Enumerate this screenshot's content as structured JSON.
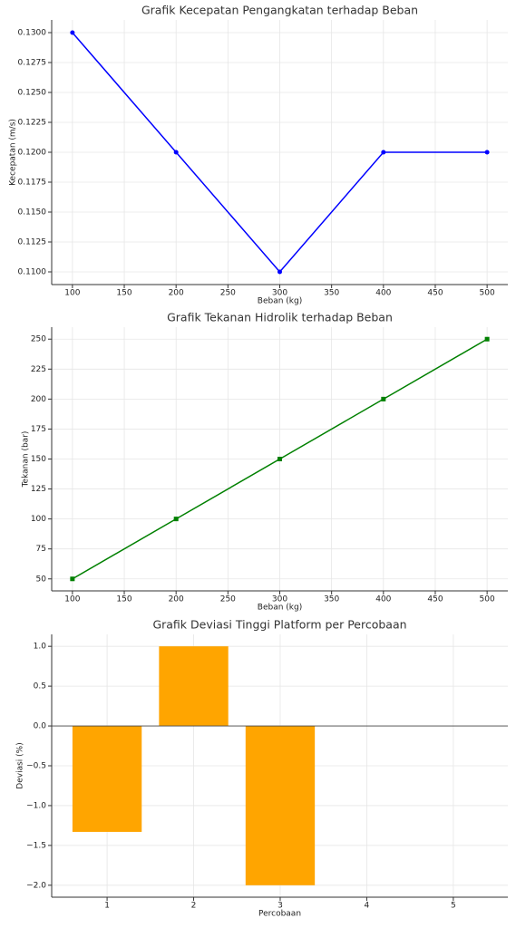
{
  "chart_data": [
    {
      "type": "line",
      "title": "Grafik Kecepatan Pengangkatan terhadap Beban",
      "xlabel": "Beban (kg)",
      "ylabel": "Kecepatan (m/s)",
      "x": [
        100,
        200,
        300,
        400,
        500
      ],
      "series": [
        {
          "name": "Kecepatan",
          "color": "#0000ff",
          "marker": "circle",
          "values": [
            0.13,
            0.12,
            0.11,
            0.12,
            0.12
          ]
        }
      ],
      "xlim": [
        80,
        520
      ],
      "xticks": [
        100,
        150,
        200,
        250,
        300,
        350,
        400,
        450,
        500
      ],
      "ylim": [
        0.10894,
        0.13106
      ],
      "yticks": [
        {
          "value": 0.11,
          "label": "0.1100"
        },
        {
          "value": 0.1125,
          "label": "0.1125"
        },
        {
          "value": 0.115,
          "label": "0.1150"
        },
        {
          "value": 0.1175,
          "label": "0.1175"
        },
        {
          "value": 0.12,
          "label": "0.1200"
        },
        {
          "value": 0.1225,
          "label": "0.1225"
        },
        {
          "value": 0.125,
          "label": "0.1250"
        },
        {
          "value": 0.1275,
          "label": "0.1275"
        },
        {
          "value": 0.13,
          "label": "0.1300"
        }
      ],
      "grid": true
    },
    {
      "type": "line",
      "title": "Grafik Tekanan Hidrolik terhadap Beban",
      "xlabel": "Beban (kg)",
      "ylabel": "Tekanan (bar)",
      "x": [
        100,
        200,
        300,
        400,
        500
      ],
      "series": [
        {
          "name": "Tekanan",
          "color": "#008000",
          "marker": "square",
          "values": [
            50,
            100,
            150,
            200,
            250
          ]
        }
      ],
      "xlim": [
        80,
        520
      ],
      "xticks": [
        100,
        150,
        200,
        250,
        300,
        350,
        400,
        450,
        500
      ],
      "ylim": [
        40,
        260
      ],
      "yticks": [
        50,
        75,
        100,
        125,
        150,
        175,
        200,
        225,
        250
      ],
      "grid": true
    },
    {
      "type": "bar",
      "title": "Grafik Deviasi Tinggi Platform per Percobaan",
      "xlabel": "Percobaan",
      "ylabel": "Deviasi (%)",
      "x": [
        1,
        2,
        3,
        4,
        5
      ],
      "values": [
        -1.33,
        1.0,
        -2.0,
        0,
        0
      ],
      "color": "#ffa500",
      "xlim": [
        0.36,
        5.63
      ],
      "xticks": [
        1,
        2,
        3,
        4,
        5
      ],
      "ylim": [
        -2.15,
        1.15
      ],
      "yticks": [
        {
          "value": -2,
          "label": "−2.0"
        },
        {
          "value": -1.5,
          "label": "−1.5"
        },
        {
          "value": -1,
          "label": "−1.0"
        },
        {
          "value": -0.5,
          "label": "−0.5"
        },
        {
          "value": 0,
          "label": "0.0"
        },
        {
          "value": 0.5,
          "label": "0.5"
        },
        {
          "value": 1,
          "label": "1.0"
        }
      ],
      "grid": true,
      "zero_line": true
    }
  ]
}
